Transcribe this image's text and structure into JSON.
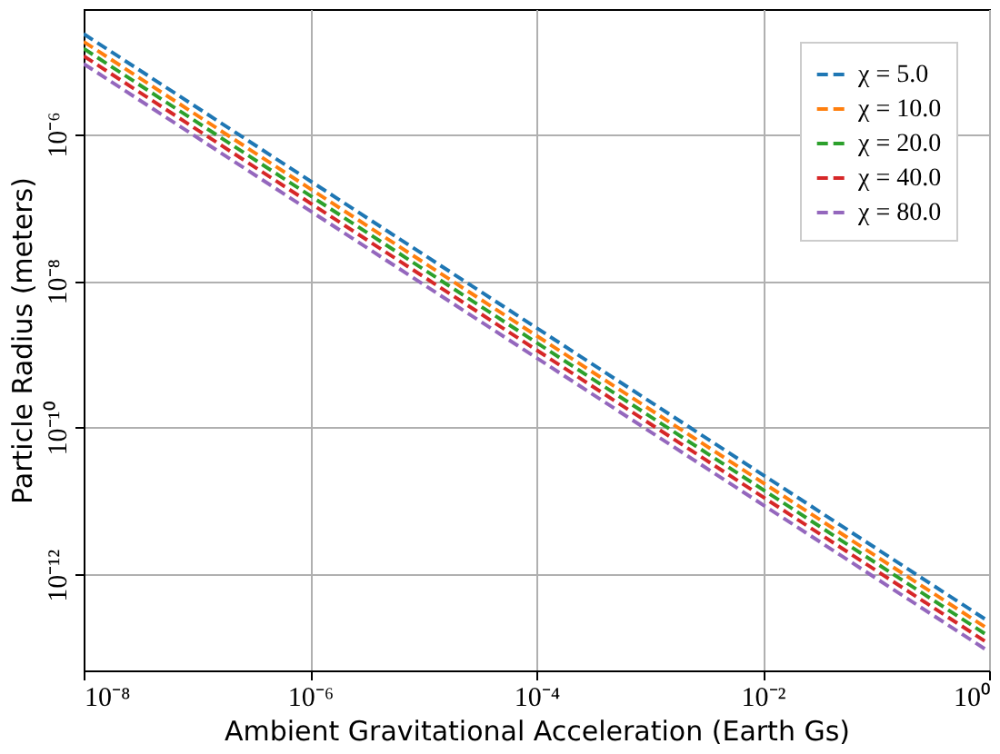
{
  "chart_data": {
    "type": "line",
    "xlabel": "Ambient Gravitational Acceleration (Earth Gs)",
    "ylabel": "Particle Radius (meters)",
    "log": "xy",
    "grid": true,
    "legend": "top right",
    "line_style": "dashed",
    "marker": "none",
    "x": [
      1e-08,
      1
    ],
    "xlim": [
      1e-08,
      1
    ],
    "xticks": [
      {
        "value": 1e-08,
        "label": "10⁻⁸"
      },
      {
        "value": 1e-06,
        "label": "10⁻⁶"
      },
      {
        "value": 0.0001,
        "label": "10⁻⁴"
      },
      {
        "value": 0.01,
        "label": "10⁻²"
      },
      {
        "value": 1,
        "label": "10⁰"
      }
    ],
    "ylim": [
      5e-14,
      5e-05
    ],
    "yticks": [
      {
        "value": 1e-12,
        "label": "10⁻¹²"
      },
      {
        "value": 1e-10,
        "label": "10⁻¹⁰"
      },
      {
        "value": 1e-08,
        "label": "10⁻⁸"
      },
      {
        "value": 1e-06,
        "label": "10⁻⁶"
      }
    ],
    "series": [
      {
        "name": "χ = 5.0",
        "color": "#1f77b4",
        "values": [
          2.3e-05,
          2.3e-13
        ]
      },
      {
        "name": "χ = 10.0",
        "color": "#ff7f0e",
        "values": [
          1.8e-05,
          1.8e-13
        ]
      },
      {
        "name": "χ = 20.0",
        "color": "#2ca02c",
        "values": [
          1.45e-05,
          1.45e-13
        ]
      },
      {
        "name": "χ = 40.0",
        "color": "#d62728",
        "values": [
          1.15e-05,
          1.15e-13
        ]
      },
      {
        "name": "χ = 80.0",
        "color": "#9467bd",
        "values": [
          9e-06,
          9e-14
        ]
      }
    ]
  }
}
